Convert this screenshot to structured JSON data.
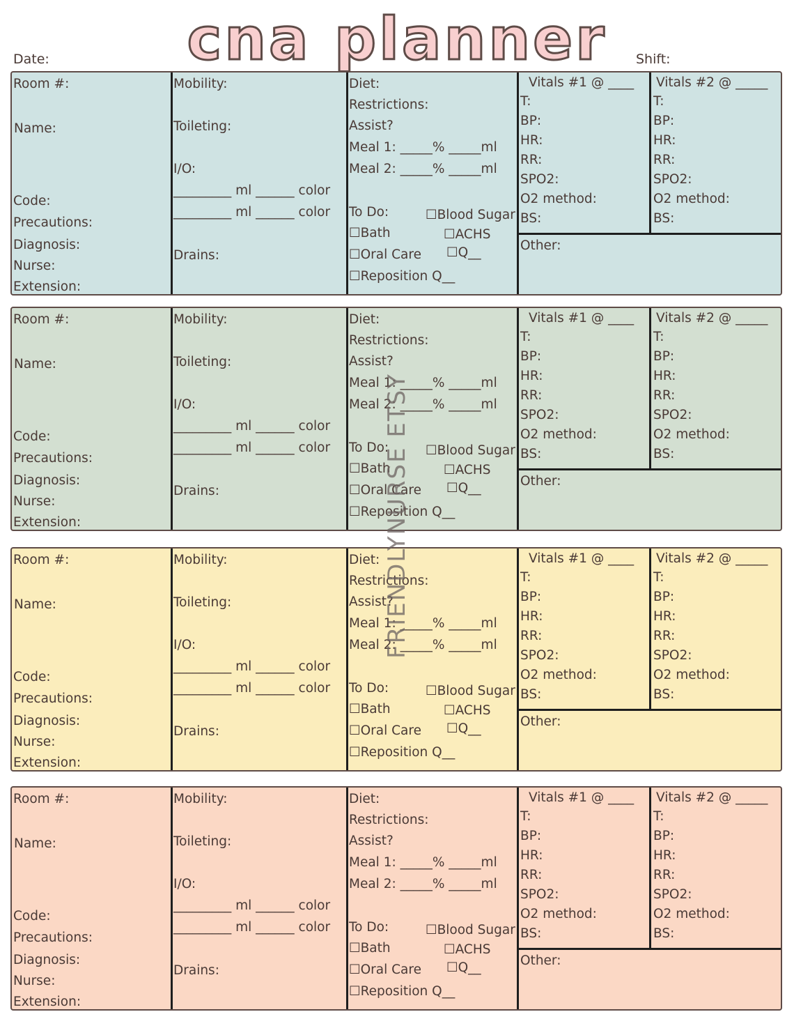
{
  "header": {
    "title": "cna planner",
    "date_label": "Date:",
    "shift_label": "Shift:"
  },
  "labels": {
    "room": "Room #:",
    "name": "Name:",
    "code": "Code:",
    "precautions": "Precautions:",
    "diagnosis": "Diagnosis:",
    "nurse": "Nurse:",
    "extension": "Extension:",
    "mobility": "Mobility:",
    "toileting": "Toileting:",
    "io": "I/O:",
    "io_line": "_________ ml ______ color",
    "drains": "Drains:",
    "diet": "Diet:",
    "restrictions": "Restrictions:",
    "assist": "Assist?",
    "meal1": "Meal 1: _____% _____ml",
    "meal2": "Meal 2: _____% _____ml",
    "todo": "To Do:",
    "blood_sugar": "☐Blood Sugar",
    "bath": "☐Bath",
    "achs": "☐ACHS",
    "oral_care": "☐Oral Care",
    "q": "☐Q__",
    "reposition": "☐Reposition Q__",
    "vitals1": "Vitals #1 @ ____",
    "vitals2": "Vitals #2 @ _____",
    "t": "T:",
    "bp": "BP:",
    "hr": "HR:",
    "rr": "RR:",
    "spo2": "SPO2:",
    "o2_method": "O2 method:",
    "bs": "BS:",
    "other": "Other:"
  },
  "colors": {
    "card1": "#cfe3e3",
    "card2": "#d3dfd1",
    "card3": "#fbedbc",
    "card4": "#fbd8c5",
    "title_fill": "#f8cfcf",
    "border": "#5e4b47"
  },
  "watermark": "FRIENDLYNURSE ETSY"
}
